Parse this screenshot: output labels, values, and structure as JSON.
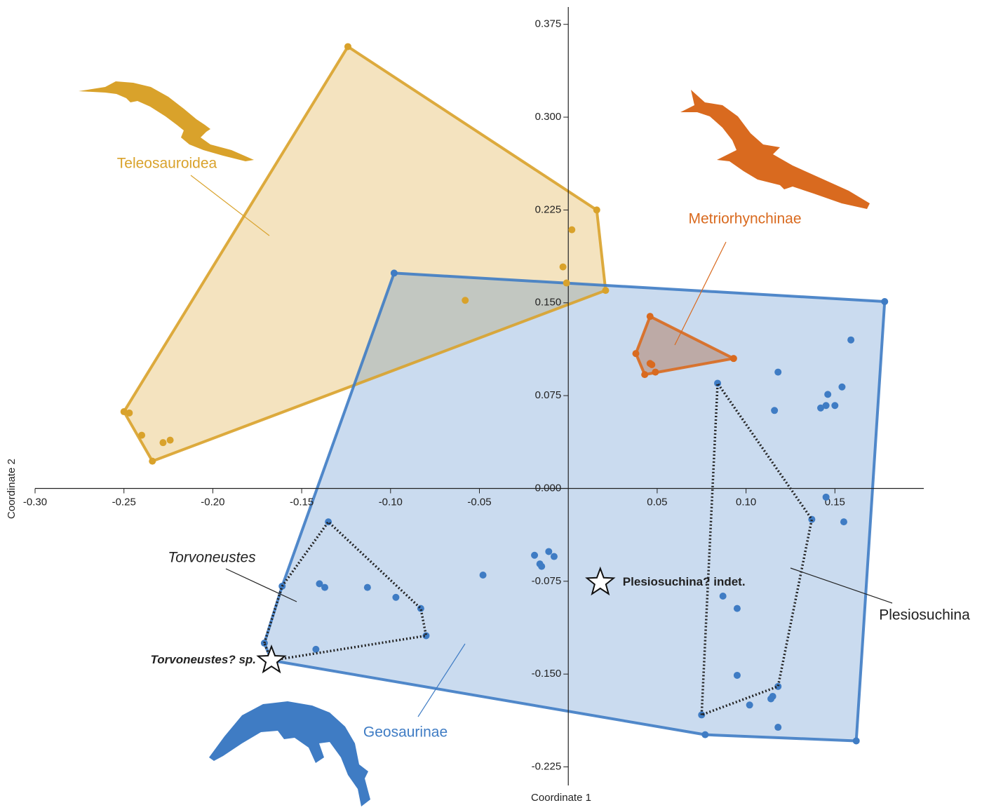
{
  "chart_data": {
    "type": "scatter",
    "x_label": "Coordinate 1",
    "y_label": "Coordinate 2",
    "xlim": [
      -0.3,
      0.2
    ],
    "ylim": [
      -0.24,
      0.389
    ],
    "xticks": [
      {
        "value": -0.3,
        "label": "-0.30"
      },
      {
        "value": -0.25,
        "label": "-0.25"
      },
      {
        "value": -0.2,
        "label": "-0.20"
      },
      {
        "value": -0.15,
        "label": "-0.15"
      },
      {
        "value": -0.1,
        "label": "-0.10"
      },
      {
        "value": -0.05,
        "label": "-0.05"
      },
      0.05,
      {
        "value": 0.1,
        "label": "0.10"
      },
      0.15
    ],
    "yticks": [
      0.375,
      {
        "value": 0.3,
        "label": "0.300"
      },
      0.225,
      {
        "value": 0.15,
        "label": "0.150"
      },
      0.075,
      {
        "value": 0,
        "label": "0.000"
      },
      -0.075,
      {
        "value": -0.15,
        "label": "-0.150"
      },
      -0.225
    ],
    "series": [
      {
        "name": "Teleosauroidea",
        "color": "#d9a22b",
        "x": [
          -0.124,
          0.016,
          0.021,
          -0.25,
          -0.247,
          -0.24,
          -0.234,
          -0.228,
          -0.224,
          -0.058,
          -0.003,
          0.002,
          -0.001
        ],
        "y": [
          0.357,
          0.225,
          0.16,
          0.062,
          0.061,
          0.043,
          0.022,
          0.037,
          0.039,
          0.152,
          0.179,
          0.209,
          0.166
        ]
      },
      {
        "name": "Metriorhynchinae",
        "color": "#d96a1f",
        "x": [
          0.046,
          0.038,
          0.043,
          0.046,
          0.047,
          0.049,
          0.093
        ],
        "y": [
          0.139,
          0.109,
          0.092,
          0.101,
          0.1,
          0.094,
          0.105
        ]
      },
      {
        "name": "Geosaurinae",
        "color": "#3f7cc4",
        "x": [
          -0.098,
          0.178,
          0.162,
          0.077,
          -0.048,
          -0.019,
          -0.016,
          -0.015,
          -0.011,
          -0.008,
          0.118,
          0.116,
          0.142,
          0.145,
          0.146,
          0.15,
          0.154,
          0.159,
          0.145,
          0.155,
          0.115,
          0.114,
          0.102,
          0.118
        ],
        "y": [
          0.174,
          0.151,
          -0.204,
          -0.199,
          -0.07,
          -0.054,
          -0.061,
          -0.063,
          -0.051,
          -0.055,
          0.094,
          0.063,
          0.065,
          0.067,
          0.076,
          0.067,
          0.082,
          0.12,
          -0.007,
          -0.027,
          -0.168,
          -0.17,
          -0.175,
          -0.193
        ],
        "subgroups": [
          {
            "name": "Torvoneustes",
            "x": [
              -0.135,
              -0.14,
              -0.137,
              -0.113,
              -0.097,
              -0.083,
              -0.08,
              -0.161,
              -0.171,
              -0.142
            ],
            "y": [
              -0.027,
              -0.077,
              -0.08,
              -0.08,
              -0.088,
              -0.097,
              -0.119,
              -0.079,
              -0.125,
              -0.13
            ],
            "specimen": {
              "name": "Torvoneustes? sp.",
              "x": -0.167,
              "y": -0.139
            }
          },
          {
            "name": "Plesiosuchina",
            "x": [
              0.084,
              0.137,
              0.118,
              0.075,
              0.087,
              0.095,
              0.095
            ],
            "y": [
              0.085,
              -0.025,
              -0.16,
              -0.183,
              -0.087,
              -0.097,
              -0.151
            ]
          }
        ],
        "specimens": [
          {
            "name": "Plesiosuchina? indet.",
            "x": 0.018,
            "y": -0.076
          }
        ]
      }
    ]
  }
}
